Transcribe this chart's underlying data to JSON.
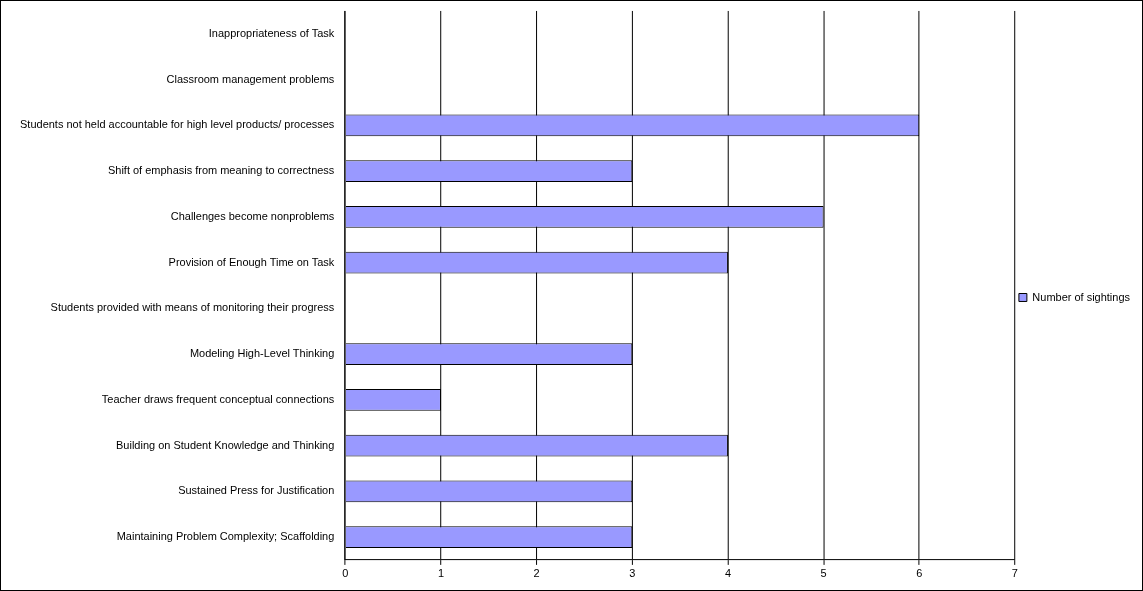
{
  "chart_data": {
    "type": "bar",
    "orientation": "horizontal",
    "categories": [
      "Inappropriateness of Task",
      "Classroom management problems",
      "Students not held accountable for high level products/ processes",
      "Shift of emphasis from meaning to correctness",
      "Challenges become nonproblems",
      "Provision of Enough Time on Task",
      "Students provided with means of monitoring their progress",
      "Modeling High-Level Thinking",
      "Teacher draws frequent conceptual connections",
      "Building on Student Knowledge and Thinking",
      "Sustained Press for Justification",
      "Maintaining Problem Complexity; Scaffolding"
    ],
    "series": [
      {
        "name": "Number of sightings",
        "color": "#9999ff",
        "values": [
          0,
          0,
          6,
          3,
          5,
          4,
          0,
          3,
          1,
          4,
          3,
          3
        ]
      }
    ],
    "xlim": [
      0,
      7
    ],
    "xticks": [
      0,
      1,
      2,
      3,
      4,
      5,
      6,
      7
    ],
    "grid": "x",
    "legend": "right"
  }
}
